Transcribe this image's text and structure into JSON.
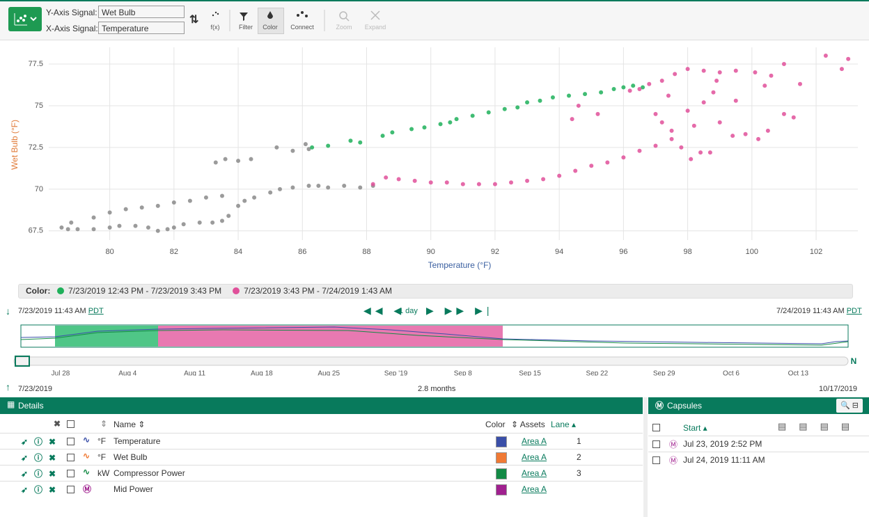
{
  "toolbar": {
    "y_axis_label": "Y-Axis Signal:",
    "y_signal": "Wet Bulb",
    "x_axis_label": "X-Axis Signal:",
    "x_signal": "Temperature",
    "buttons": [
      "f(x)",
      "Filter",
      "Color",
      "Connect",
      "Zoom",
      "Expand"
    ]
  },
  "chart_data": {
    "type": "scatter",
    "x_label": "Temperature (°F)",
    "y_label": "Wet Bulb (°F)",
    "xlim": [
      78.1,
      103.3
    ],
    "ylim": [
      66.95,
      78.5
    ],
    "xticks": [
      80,
      82,
      84,
      86,
      88,
      90,
      92,
      94,
      96,
      98,
      100,
      102
    ],
    "yticks": [
      67.5,
      70,
      72.5,
      75,
      77.5
    ],
    "grid": true,
    "series": [
      {
        "color": "#8a8a8a",
        "x": [
          78.5,
          78.7,
          79,
          79.5,
          80,
          80.3,
          80.8,
          81.2,
          81.5,
          81.8,
          82,
          82.3,
          82.8,
          83.2,
          83.5,
          83.7,
          84,
          84.2,
          84.5,
          85,
          85.3,
          85.7,
          86.2,
          86.5,
          86.8,
          87.3,
          87.8,
          88.2,
          78.8,
          79.5,
          80,
          80.5,
          81,
          81.5,
          82,
          82.5,
          83,
          83.5,
          83.3,
          83.6,
          84,
          84.4,
          85.2,
          85.7,
          86.2,
          86.1
        ],
        "values": [
          67.7,
          67.6,
          67.6,
          67.6,
          67.7,
          67.8,
          67.8,
          67.7,
          67.5,
          67.6,
          67.7,
          67.9,
          68,
          68,
          68.1,
          68.4,
          69,
          69.3,
          69.5,
          69.8,
          70,
          70.1,
          70.2,
          70.2,
          70.1,
          70.2,
          70.1,
          70.2,
          68,
          68.3,
          68.6,
          68.8,
          68.9,
          69,
          69.2,
          69.3,
          69.5,
          69.6,
          71.6,
          71.8,
          71.7,
          71.8,
          72.5,
          72.3,
          72.4,
          72.7
        ]
      },
      {
        "name": "7/23/2019 12:43 PM - 7/23/2019 3:43 PM",
        "color": "#1fb05a",
        "x": [
          86.3,
          86.8,
          87.5,
          87.8,
          88.5,
          88.8,
          89.4,
          89.8,
          90.3,
          90.6,
          90.8,
          91.3,
          91.8,
          92.3,
          92.7,
          93,
          93.4,
          93.8,
          94.3,
          94.8,
          95.3,
          95.7,
          96,
          96.3,
          96.6
        ],
        "values": [
          72.5,
          72.6,
          72.9,
          72.8,
          73.2,
          73.4,
          73.6,
          73.7,
          73.9,
          74,
          74.2,
          74.4,
          74.6,
          74.8,
          74.9,
          75.2,
          75.3,
          75.5,
          75.6,
          75.7,
          75.8,
          76,
          76.1,
          76.2,
          76.1
        ]
      },
      {
        "name": "7/23/2019 3:43 PM - 7/24/2019 1:43 AM",
        "color": "#e0509a",
        "x": [
          88.2,
          88.6,
          89,
          89.5,
          90,
          90.5,
          91,
          91.5,
          92,
          92.5,
          93,
          93.5,
          94,
          94.5,
          95,
          95.5,
          96,
          96.5,
          97,
          97.5,
          96.2,
          96.5,
          96.8,
          97.2,
          97.6,
          98,
          98.5,
          99,
          99.5,
          100.1,
          100.6,
          101,
          101.5,
          102.3,
          103,
          97,
          97.2,
          97.5,
          98,
          98.2,
          98.5,
          98.8,
          99,
          99.4,
          99.8,
          100.2,
          100.5,
          101,
          101.3,
          97.8,
          98.1,
          98.4,
          98.7,
          95.2,
          94.6,
          94.4,
          97.4,
          98.9,
          99.5,
          100.4,
          102.8
        ],
        "values": [
          70.3,
          70.7,
          70.6,
          70.5,
          70.4,
          70.4,
          70.3,
          70.3,
          70.3,
          70.4,
          70.5,
          70.6,
          70.8,
          71.1,
          71.4,
          71.6,
          71.9,
          72.3,
          72.6,
          73,
          75.9,
          76,
          76.3,
          76.5,
          76.9,
          77.2,
          77.1,
          77,
          77.1,
          77,
          76.8,
          77.5,
          76.3,
          78,
          77.8,
          74.5,
          74,
          73.5,
          74.7,
          73.8,
          75.2,
          75.8,
          74,
          73.2,
          73.3,
          73,
          73.5,
          74.5,
          74.3,
          72.5,
          71.8,
          72.2,
          72.2,
          74.5,
          75,
          74.2,
          75.6,
          76.5,
          75.3,
          76.2,
          77.2
        ]
      }
    ]
  },
  "color_legend": {
    "label": "Color:"
  },
  "timeline": {
    "start": "7/23/2019 11:43 AM",
    "end": "7/24/2019 11:43 AM",
    "timezone": "PDT",
    "step": "1 day",
    "ticks": [
      "Jul 28",
      "Aug 4",
      "Aug 11",
      "Aug 18",
      "Aug 25",
      "Sep '19",
      "Sep 8",
      "Sep 15",
      "Sep 22",
      "Sep 29",
      "Oct 6",
      "Oct 13"
    ],
    "range_start": "7/23/2019",
    "range_span": "2.8 months",
    "range_end": "10/17/2019"
  },
  "details": {
    "title": "Details",
    "columns": [
      "Name",
      "Color",
      "Assets",
      "Lane"
    ],
    "rows": [
      {
        "unit": "°F",
        "name": "Temperature",
        "color": "#3a4fa8",
        "asset": "Area A",
        "lane": 1
      },
      {
        "unit": "°F",
        "name": "Wet Bulb",
        "color": "#f07a35",
        "asset": "Area A",
        "lane": 2
      },
      {
        "unit": "kW",
        "name": "Compressor Power",
        "color": "#138a45",
        "asset": "Area A",
        "lane": 3
      },
      {
        "name": "Mid Power",
        "color": "#a0208f",
        "asset": "Area A"
      }
    ]
  },
  "capsules": {
    "title": "Capsules",
    "column": "Start",
    "rows": [
      "Jul 23, 2019 2:52 PM",
      "Jul 24, 2019 11:11 AM"
    ]
  }
}
